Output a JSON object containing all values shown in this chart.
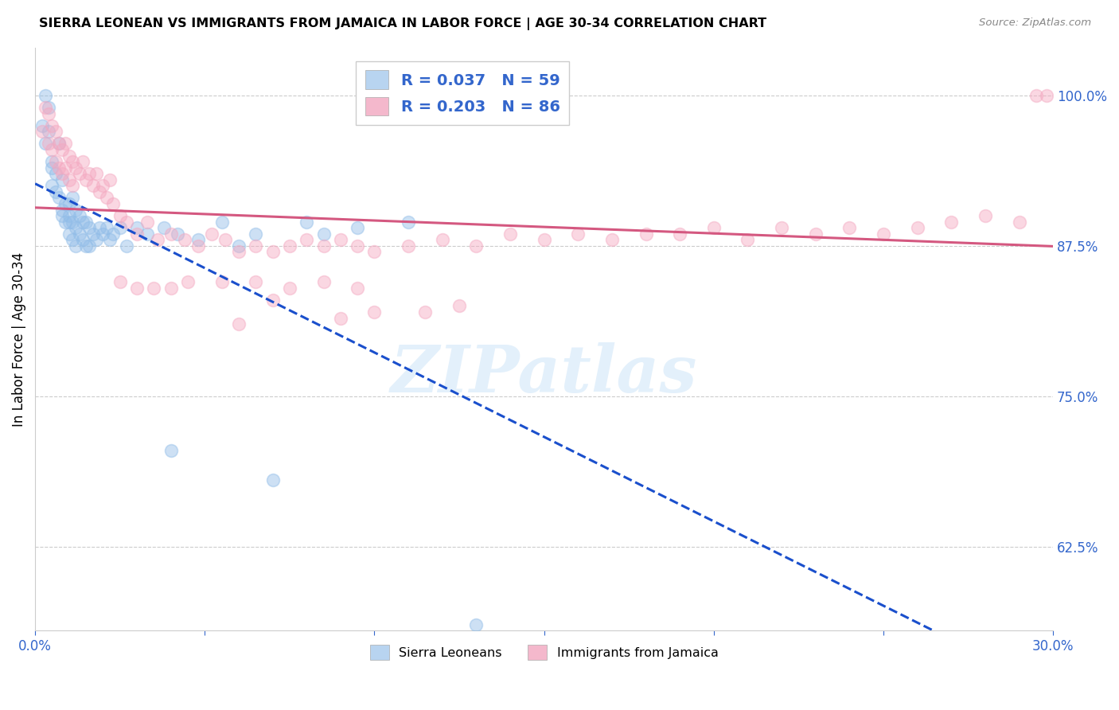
{
  "title": "SIERRA LEONEAN VS IMMIGRANTS FROM JAMAICA IN LABOR FORCE | AGE 30-34 CORRELATION CHART",
  "source": "Source: ZipAtlas.com",
  "ylabel": "In Labor Force | Age 30-34",
  "xlim": [
    0.0,
    0.3
  ],
  "ylim": [
    0.555,
    1.04
  ],
  "xticks": [
    0.0,
    0.05,
    0.1,
    0.15,
    0.2,
    0.25,
    0.3
  ],
  "xticklabels": [
    "0.0%",
    "",
    "",
    "",
    "",
    "",
    "30.0%"
  ],
  "yticks": [
    0.625,
    0.75,
    0.875,
    1.0
  ],
  "yticklabels": [
    "62.5%",
    "75.0%",
    "87.5%",
    "100.0%"
  ],
  "blue_color": "#90bce8",
  "pink_color": "#f4a8c0",
  "blue_line_color": "#1a4fcc",
  "pink_line_color": "#d45880",
  "blue_scatter_x": [
    0.002,
    0.003,
    0.003,
    0.004,
    0.004,
    0.005,
    0.005,
    0.005,
    0.006,
    0.006,
    0.007,
    0.007,
    0.008,
    0.008,
    0.008,
    0.009,
    0.009,
    0.01,
    0.01,
    0.01,
    0.01,
    0.011,
    0.011,
    0.011,
    0.012,
    0.012,
    0.012,
    0.013,
    0.013,
    0.014,
    0.014,
    0.015,
    0.015,
    0.016,
    0.016,
    0.017,
    0.018,
    0.019,
    0.02,
    0.021,
    0.022,
    0.023,
    0.025,
    0.027,
    0.03,
    0.033,
    0.038,
    0.042,
    0.048,
    0.055,
    0.065,
    0.08,
    0.095,
    0.04,
    0.06,
    0.07,
    0.085,
    0.11,
    0.13
  ],
  "blue_scatter_y": [
    0.975,
    1.0,
    0.96,
    0.99,
    0.97,
    0.925,
    0.945,
    0.94,
    0.935,
    0.92,
    0.96,
    0.915,
    0.93,
    0.9,
    0.905,
    0.91,
    0.895,
    0.91,
    0.9,
    0.895,
    0.885,
    0.915,
    0.895,
    0.88,
    0.905,
    0.89,
    0.875,
    0.9,
    0.885,
    0.895,
    0.88,
    0.895,
    0.875,
    0.89,
    0.875,
    0.885,
    0.88,
    0.89,
    0.885,
    0.89,
    0.88,
    0.885,
    0.89,
    0.875,
    0.89,
    0.885,
    0.89,
    0.885,
    0.88,
    0.895,
    0.885,
    0.895,
    0.89,
    0.705,
    0.875,
    0.68,
    0.885,
    0.895,
    0.56
  ],
  "pink_scatter_x": [
    0.002,
    0.003,
    0.004,
    0.004,
    0.005,
    0.005,
    0.006,
    0.006,
    0.007,
    0.007,
    0.008,
    0.008,
    0.009,
    0.009,
    0.01,
    0.01,
    0.011,
    0.011,
    0.012,
    0.013,
    0.014,
    0.015,
    0.016,
    0.017,
    0.018,
    0.019,
    0.02,
    0.021,
    0.022,
    0.023,
    0.025,
    0.027,
    0.03,
    0.033,
    0.036,
    0.04,
    0.044,
    0.048,
    0.052,
    0.056,
    0.06,
    0.065,
    0.07,
    0.075,
    0.08,
    0.085,
    0.09,
    0.095,
    0.1,
    0.11,
    0.12,
    0.13,
    0.14,
    0.15,
    0.16,
    0.17,
    0.18,
    0.19,
    0.2,
    0.21,
    0.22,
    0.23,
    0.24,
    0.25,
    0.26,
    0.27,
    0.28,
    0.29,
    0.295,
    0.298,
    0.025,
    0.03,
    0.04,
    0.055,
    0.065,
    0.075,
    0.085,
    0.095,
    0.06,
    0.09,
    0.035,
    0.045,
    0.07,
    0.1,
    0.115,
    0.125
  ],
  "pink_scatter_y": [
    0.97,
    0.99,
    0.985,
    0.96,
    0.975,
    0.955,
    0.97,
    0.945,
    0.96,
    0.94,
    0.955,
    0.935,
    0.96,
    0.94,
    0.95,
    0.93,
    0.945,
    0.925,
    0.94,
    0.935,
    0.945,
    0.93,
    0.935,
    0.925,
    0.935,
    0.92,
    0.925,
    0.915,
    0.93,
    0.91,
    0.9,
    0.895,
    0.885,
    0.895,
    0.88,
    0.885,
    0.88,
    0.875,
    0.885,
    0.88,
    0.87,
    0.875,
    0.87,
    0.875,
    0.88,
    0.875,
    0.88,
    0.875,
    0.87,
    0.875,
    0.88,
    0.875,
    0.885,
    0.88,
    0.885,
    0.88,
    0.885,
    0.885,
    0.89,
    0.88,
    0.89,
    0.885,
    0.89,
    0.885,
    0.89,
    0.895,
    0.9,
    0.895,
    1.0,
    1.0,
    0.845,
    0.84,
    0.84,
    0.845,
    0.845,
    0.84,
    0.845,
    0.84,
    0.81,
    0.815,
    0.84,
    0.845,
    0.83,
    0.82,
    0.82,
    0.825
  ],
  "watermark_text": "ZIPatlas",
  "legend_blue_label": "R = 0.037   N = 59",
  "legend_pink_label": "R = 0.203   N = 86"
}
